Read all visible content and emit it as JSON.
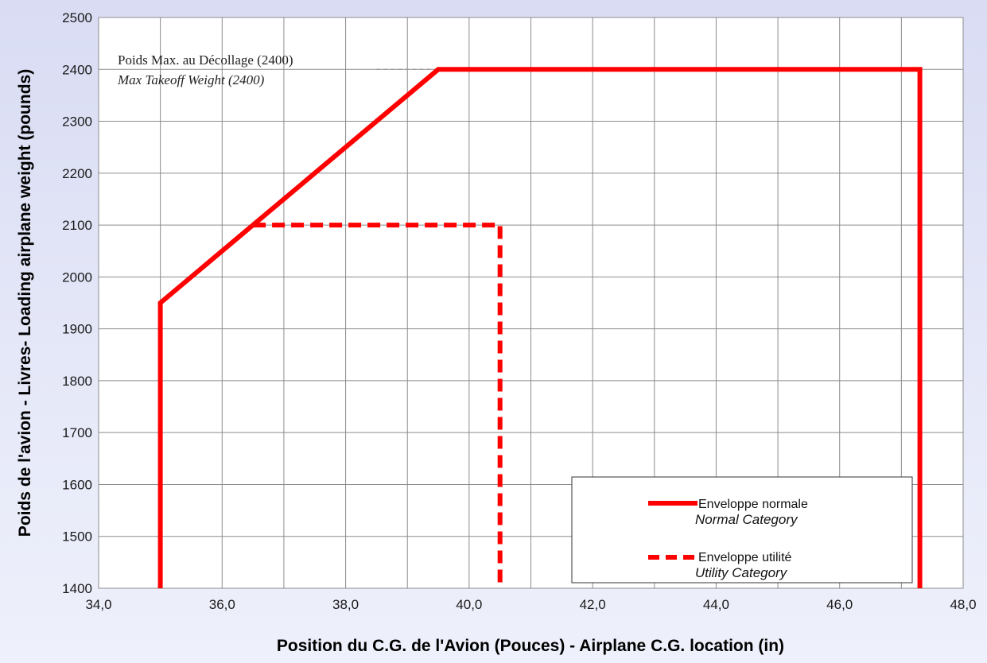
{
  "chart_data": {
    "type": "line",
    "xlabel": "Position du C.G. de l'Avion (Pouces) - Airplane C.G. location (in)",
    "ylabel": "Poids de l'avion - Livres- Loading airplane weight (pounds)",
    "xlim": [
      34,
      48
    ],
    "ylim": [
      1400,
      2500
    ],
    "x_ticks": [
      "34,0",
      "36,0",
      "38,0",
      "40,0",
      "42,0",
      "44,0",
      "46,0",
      "48,0"
    ],
    "y_ticks": [
      "1400",
      "1500",
      "1600",
      "1700",
      "1800",
      "1900",
      "2000",
      "2100",
      "2200",
      "2300",
      "2400",
      "2500"
    ],
    "grid": true,
    "legend_position": "bottom-right",
    "series": [
      {
        "name": "Enveloppe normale",
        "name_en": "Normal Category",
        "style": "solid",
        "color": "#ff0000",
        "points": [
          [
            35.0,
            1400
          ],
          [
            35.0,
            1950
          ],
          [
            39.5,
            2400
          ],
          [
            47.3,
            2400
          ],
          [
            47.3,
            1400
          ]
        ]
      },
      {
        "name": "Enveloppe utilité",
        "name_en": "Utility Category",
        "style": "dashed",
        "color": "#ff0000",
        "points": [
          [
            36.5,
            2100
          ],
          [
            40.5,
            2100
          ],
          [
            40.5,
            1400
          ]
        ]
      }
    ],
    "reference_line": {
      "x_from": 38.5,
      "x_to": 39.5,
      "y": 2400,
      "style": "dashed",
      "color": "#999999"
    },
    "annotation": {
      "line1": "Poids Max. au Décollage (2400)",
      "line2": "Max Takeoff Weight (2400)"
    }
  }
}
